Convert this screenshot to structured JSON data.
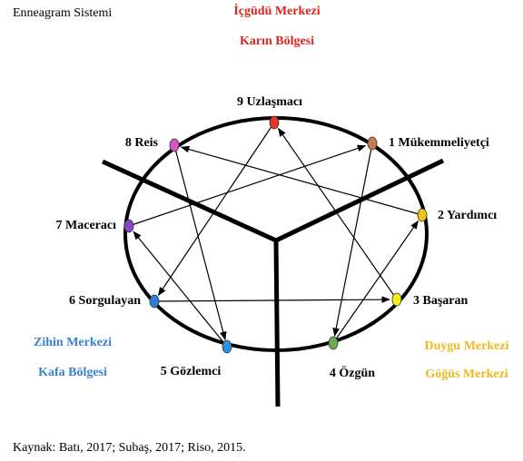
{
  "title": "Enneagram Sistemi",
  "centers": {
    "instinct": {
      "name": "İçgüdü Merkezi",
      "region": "Karın Bölgesi"
    },
    "head": {
      "name": "Zihin Merkezi",
      "region": "Kafa Bölgesi"
    },
    "heart": {
      "name": "Duygu Merkezi",
      "region": "Göğüs Merkezi"
    }
  },
  "nodes": [
    {
      "label": "9 Uzlaşmacı",
      "color": "#e8342c"
    },
    {
      "label": "1 Mükemmeliyetçi",
      "color": "#c87a4e"
    },
    {
      "label": "2 Yardımcı",
      "color": "#f2c21b"
    },
    {
      "label": "3 Başaran",
      "color": "#f4ee1a"
    },
    {
      "label": "4 Özgün",
      "color": "#6fa84f"
    },
    {
      "label": "5 Gözlemci",
      "color": "#2f8fe0"
    },
    {
      "label": "6 Sorgulayan",
      "color": "#2f7fd8"
    },
    {
      "label": "7 Maceracı",
      "color": "#8a45c8"
    },
    {
      "label": "8 Reis",
      "color": "#d653c8"
    }
  ],
  "source": "Kaynak: Batı, 2017; Subaş, 2017; Riso, 2015."
}
